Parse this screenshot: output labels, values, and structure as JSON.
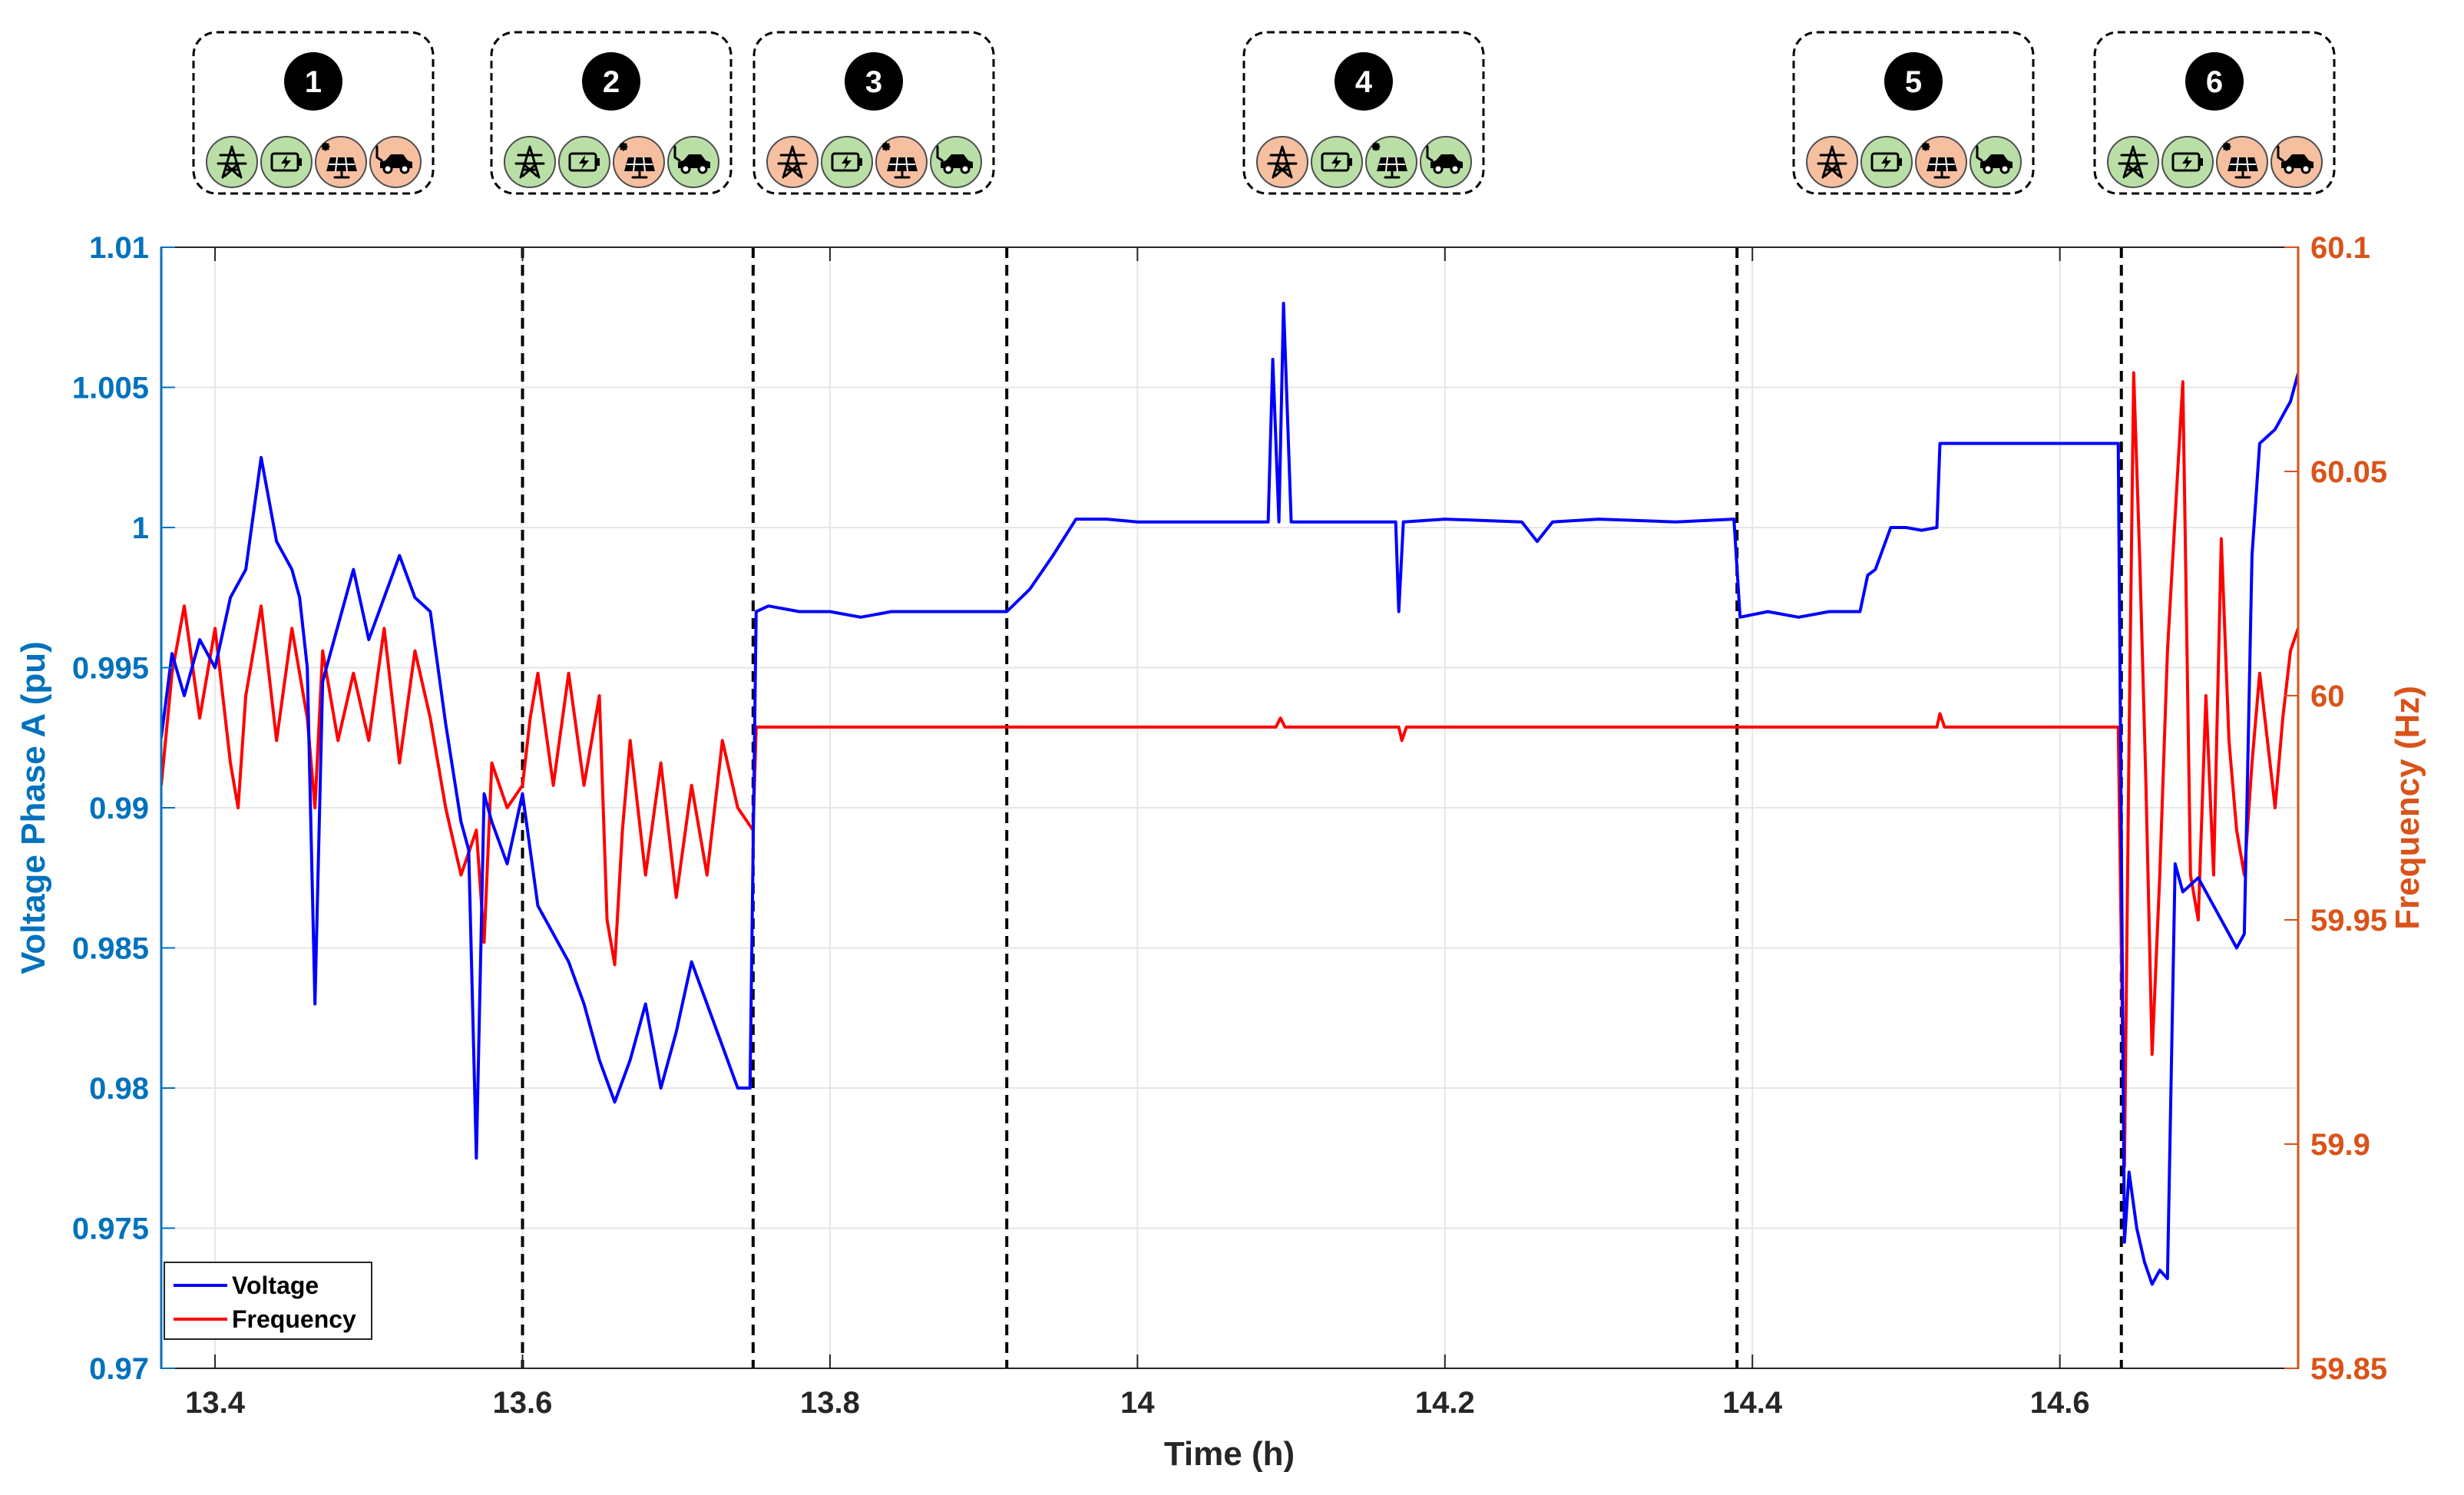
{
  "chart_data": {
    "type": "line",
    "xlabel": "Time (h)",
    "ylabel_left": "Voltage Phase A (pu)",
    "ylabel_right": "Frequency (Hz)",
    "xlim": [
      13.365,
      14.755
    ],
    "ylim_left": [
      0.97,
      1.01
    ],
    "ylim_right": [
      59.85,
      60.1
    ],
    "x_ticks": [
      13.4,
      13.6,
      13.8,
      14,
      14.2,
      14.4,
      14.6
    ],
    "x_tick_labels": [
      "13.4",
      "13.6",
      "13.8",
      "14",
      "14.2",
      "14.4",
      "14.6"
    ],
    "y_left_ticks": [
      0.97,
      0.975,
      0.98,
      0.985,
      0.99,
      0.995,
      1,
      1.005,
      1.01
    ],
    "y_left_tick_labels": [
      "0.97",
      "0.975",
      "0.98",
      "0.985",
      "0.99",
      "0.995",
      "1",
      "1.005",
      "1.01"
    ],
    "y_right_ticks": [
      59.85,
      59.9,
      59.95,
      60,
      60.05,
      60.1
    ],
    "y_right_tick_labels": [
      "59.85",
      "59.9",
      "59.95",
      "60",
      "60.05",
      "60.1"
    ],
    "grid": true,
    "legend_position": "bottom-left",
    "phase_boundaries": [
      13.6,
      13.75,
      13.915,
      14.39,
      14.64
    ],
    "series": [
      {
        "name": "Voltage",
        "axis": "left",
        "color": "#0000FF",
        "points": [
          [
            13.365,
            0.9925
          ],
          [
            13.372,
            0.9955
          ],
          [
            13.38,
            0.994
          ],
          [
            13.39,
            0.996
          ],
          [
            13.4,
            0.995
          ],
          [
            13.41,
            0.9975
          ],
          [
            13.42,
            0.9985
          ],
          [
            13.43,
            1.0025
          ],
          [
            13.44,
            0.9995
          ],
          [
            13.45,
            0.9985
          ],
          [
            13.455,
            0.9975
          ],
          [
            13.46,
            0.995
          ],
          [
            13.465,
            0.983
          ],
          [
            13.47,
            0.9945
          ],
          [
            13.48,
            0.9965
          ],
          [
            13.49,
            0.9985
          ],
          [
            13.5,
            0.996
          ],
          [
            13.51,
            0.9975
          ],
          [
            13.52,
            0.999
          ],
          [
            13.53,
            0.9975
          ],
          [
            13.54,
            0.997
          ],
          [
            13.55,
            0.993
          ],
          [
            13.56,
            0.9895
          ],
          [
            13.565,
            0.9885
          ],
          [
            13.57,
            0.9775
          ],
          [
            13.575,
            0.9905
          ],
          [
            13.58,
            0.9895
          ],
          [
            13.59,
            0.988
          ],
          [
            13.6,
            0.9905
          ],
          [
            13.605,
            0.9885
          ],
          [
            13.61,
            0.9865
          ],
          [
            13.62,
            0.9855
          ],
          [
            13.63,
            0.9845
          ],
          [
            13.64,
            0.983
          ],
          [
            13.65,
            0.981
          ],
          [
            13.66,
            0.9795
          ],
          [
            13.67,
            0.981
          ],
          [
            13.68,
            0.983
          ],
          [
            13.69,
            0.98
          ],
          [
            13.7,
            0.982
          ],
          [
            13.71,
            0.9845
          ],
          [
            13.72,
            0.983
          ],
          [
            13.73,
            0.9815
          ],
          [
            13.74,
            0.98
          ],
          [
            13.748,
            0.98
          ],
          [
            13.752,
            0.997
          ],
          [
            13.76,
            0.9972
          ],
          [
            13.78,
            0.997
          ],
          [
            13.8,
            0.997
          ],
          [
            13.82,
            0.9968
          ],
          [
            13.84,
            0.997
          ],
          [
            13.86,
            0.997
          ],
          [
            13.88,
            0.997
          ],
          [
            13.9,
            0.997
          ],
          [
            13.915,
            0.997
          ],
          [
            13.93,
            0.9978
          ],
          [
            13.945,
            0.999
          ],
          [
            13.96,
            1.0003
          ],
          [
            13.98,
            1.0003
          ],
          [
            14.0,
            1.0002
          ],
          [
            14.05,
            1.0002
          ],
          [
            14.085,
            1.0002
          ],
          [
            14.088,
            1.006
          ],
          [
            14.092,
            1.0002
          ],
          [
            14.095,
            1.008
          ],
          [
            14.1,
            1.0002
          ],
          [
            14.15,
            1.0002
          ],
          [
            14.168,
            1.0002
          ],
          [
            14.17,
            0.997
          ],
          [
            14.173,
            1.0002
          ],
          [
            14.2,
            1.0003
          ],
          [
            14.25,
            1.0002
          ],
          [
            14.26,
            0.9995
          ],
          [
            14.27,
            1.0002
          ],
          [
            14.3,
            1.0003
          ],
          [
            14.35,
            1.0002
          ],
          [
            14.388,
            1.0003
          ],
          [
            14.392,
            0.9968
          ],
          [
            14.41,
            0.997
          ],
          [
            14.43,
            0.9968
          ],
          [
            14.45,
            0.997
          ],
          [
            14.47,
            0.997
          ],
          [
            14.475,
            0.9983
          ],
          [
            14.48,
            0.9985
          ],
          [
            14.49,
            1.0
          ],
          [
            14.5,
            1.0
          ],
          [
            14.51,
            0.9999
          ],
          [
            14.52,
            1.0
          ],
          [
            14.522,
            1.003
          ],
          [
            14.55,
            1.003
          ],
          [
            14.58,
            1.003
          ],
          [
            14.61,
            1.003
          ],
          [
            14.638,
            1.003
          ],
          [
            14.642,
            0.9745
          ],
          [
            14.645,
            0.977
          ],
          [
            14.65,
            0.975
          ],
          [
            14.655,
            0.9738
          ],
          [
            14.66,
            0.973
          ],
          [
            14.665,
            0.9735
          ],
          [
            14.67,
            0.9732
          ],
          [
            14.675,
            0.988
          ],
          [
            14.68,
            0.987
          ],
          [
            14.69,
            0.9875
          ],
          [
            14.7,
            0.9865
          ],
          [
            14.71,
            0.9855
          ],
          [
            14.715,
            0.985
          ],
          [
            14.72,
            0.9855
          ],
          [
            14.725,
            0.999
          ],
          [
            14.73,
            1.003
          ],
          [
            14.74,
            1.0035
          ],
          [
            14.75,
            1.0045
          ],
          [
            14.755,
            1.0055
          ]
        ]
      },
      {
        "name": "Frequency",
        "axis": "right",
        "color": "#FF0000",
        "points": [
          [
            13.365,
            59.98
          ],
          [
            13.372,
            60.005
          ],
          [
            13.38,
            60.02
          ],
          [
            13.39,
            59.995
          ],
          [
            13.4,
            60.015
          ],
          [
            13.41,
            59.985
          ],
          [
            13.415,
            59.975
          ],
          [
            13.42,
            60.0
          ],
          [
            13.43,
            60.02
          ],
          [
            13.44,
            59.99
          ],
          [
            13.45,
            60.015
          ],
          [
            13.46,
            59.995
          ],
          [
            13.465,
            59.975
          ],
          [
            13.47,
            60.01
          ],
          [
            13.48,
            59.99
          ],
          [
            13.49,
            60.005
          ],
          [
            13.5,
            59.99
          ],
          [
            13.51,
            60.015
          ],
          [
            13.52,
            59.985
          ],
          [
            13.53,
            60.01
          ],
          [
            13.54,
            59.995
          ],
          [
            13.55,
            59.975
          ],
          [
            13.56,
            59.96
          ],
          [
            13.57,
            59.97
          ],
          [
            13.575,
            59.945
          ],
          [
            13.58,
            59.985
          ],
          [
            13.59,
            59.975
          ],
          [
            13.6,
            59.98
          ],
          [
            13.605,
            59.995
          ],
          [
            13.61,
            60.005
          ],
          [
            13.62,
            59.98
          ],
          [
            13.63,
            60.005
          ],
          [
            13.64,
            59.98
          ],
          [
            13.65,
            60.0
          ],
          [
            13.655,
            59.95
          ],
          [
            13.66,
            59.94
          ],
          [
            13.665,
            59.97
          ],
          [
            13.67,
            59.99
          ],
          [
            13.68,
            59.96
          ],
          [
            13.69,
            59.985
          ],
          [
            13.7,
            59.955
          ],
          [
            13.71,
            59.98
          ],
          [
            13.72,
            59.96
          ],
          [
            13.73,
            59.99
          ],
          [
            13.74,
            59.975
          ],
          [
            13.75,
            59.97
          ],
          [
            13.752,
            59.993
          ],
          [
            13.8,
            59.993
          ],
          [
            13.85,
            59.993
          ],
          [
            13.9,
            59.993
          ],
          [
            13.95,
            59.993
          ],
          [
            14.0,
            59.993
          ],
          [
            14.05,
            59.993
          ],
          [
            14.09,
            59.993
          ],
          [
            14.093,
            59.995
          ],
          [
            14.096,
            59.993
          ],
          [
            14.17,
            59.993
          ],
          [
            14.172,
            59.99
          ],
          [
            14.175,
            59.993
          ],
          [
            14.25,
            59.993
          ],
          [
            14.3,
            59.993
          ],
          [
            14.35,
            59.993
          ],
          [
            14.4,
            59.993
          ],
          [
            14.45,
            59.993
          ],
          [
            14.5,
            59.993
          ],
          [
            14.52,
            59.993
          ],
          [
            14.522,
            59.996
          ],
          [
            14.525,
            59.993
          ],
          [
            14.6,
            59.993
          ],
          [
            14.638,
            59.993
          ],
          [
            14.642,
            59.895
          ],
          [
            14.645,
            59.99
          ],
          [
            14.648,
            60.072
          ],
          [
            14.652,
            60.03
          ],
          [
            14.656,
            59.98
          ],
          [
            14.66,
            59.92
          ],
          [
            14.665,
            59.96
          ],
          [
            14.67,
            60.01
          ],
          [
            14.675,
            60.04
          ],
          [
            14.68,
            60.07
          ],
          [
            14.685,
            59.96
          ],
          [
            14.69,
            59.95
          ],
          [
            14.695,
            60.0
          ],
          [
            14.7,
            59.96
          ],
          [
            14.705,
            60.035
          ],
          [
            14.71,
            59.99
          ],
          [
            14.715,
            59.97
          ],
          [
            14.72,
            59.96
          ],
          [
            14.725,
            59.985
          ],
          [
            14.73,
            60.005
          ],
          [
            14.735,
            59.99
          ],
          [
            14.74,
            59.975
          ],
          [
            14.745,
            59.995
          ],
          [
            14.75,
            60.01
          ],
          [
            14.755,
            60.015
          ]
        ]
      }
    ]
  },
  "phases": [
    {
      "number": "1",
      "icons": [
        {
          "name": "grid-tower-icon",
          "state": "green"
        },
        {
          "name": "battery-icon",
          "state": "green"
        },
        {
          "name": "solar-panel-icon",
          "state": "orange"
        },
        {
          "name": "ev-car-icon",
          "state": "orange"
        }
      ]
    },
    {
      "number": "2",
      "icons": [
        {
          "name": "grid-tower-icon",
          "state": "green"
        },
        {
          "name": "battery-icon",
          "state": "green"
        },
        {
          "name": "solar-panel-icon",
          "state": "orange"
        },
        {
          "name": "ev-car-icon",
          "state": "green"
        }
      ]
    },
    {
      "number": "3",
      "icons": [
        {
          "name": "grid-tower-icon",
          "state": "orange"
        },
        {
          "name": "battery-icon",
          "state": "green"
        },
        {
          "name": "solar-panel-icon",
          "state": "orange"
        },
        {
          "name": "ev-car-icon",
          "state": "green"
        }
      ]
    },
    {
      "number": "4",
      "icons": [
        {
          "name": "grid-tower-icon",
          "state": "orange"
        },
        {
          "name": "battery-icon",
          "state": "green"
        },
        {
          "name": "solar-panel-icon",
          "state": "green"
        },
        {
          "name": "ev-car-icon",
          "state": "green"
        }
      ]
    },
    {
      "number": "5",
      "icons": [
        {
          "name": "grid-tower-icon",
          "state": "orange"
        },
        {
          "name": "battery-icon",
          "state": "green"
        },
        {
          "name": "solar-panel-icon",
          "state": "orange"
        },
        {
          "name": "ev-car-icon",
          "state": "green"
        }
      ]
    },
    {
      "number": "6",
      "icons": [
        {
          "name": "grid-tower-icon",
          "state": "green"
        },
        {
          "name": "battery-icon",
          "state": "green"
        },
        {
          "name": "solar-panel-icon",
          "state": "orange"
        },
        {
          "name": "ev-car-icon",
          "state": "orange"
        }
      ]
    }
  ],
  "colors": {
    "left_axis": "#0072BD",
    "right_axis": "#D95319",
    "icon_green": "#B9DFA6",
    "icon_orange": "#F6BFA0",
    "grid": "#E6E6E6"
  }
}
